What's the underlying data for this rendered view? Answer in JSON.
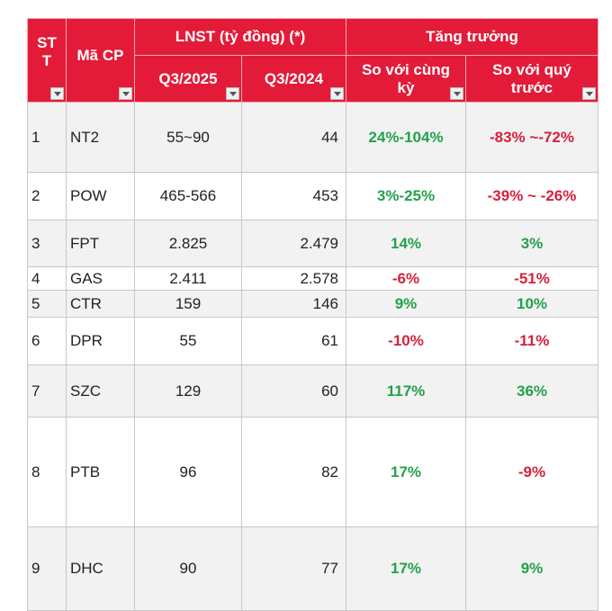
{
  "header": {
    "stt": "ST T",
    "ma_cp": "Mã CP",
    "lnst": "LNST (tỷ đồng) (*)",
    "tang_truong": "Tăng trưởng",
    "q3_2025": "Q3/2025",
    "q3_2024": "Q3/2024",
    "yoy": "So với cùng kỳ",
    "qoq": "So với quý trước"
  },
  "rows": [
    {
      "stt": "1",
      "ma": "NT2",
      "q25": "55~90",
      "q24": "44",
      "yoy": "24%-104%",
      "yoy_sign": "pos",
      "qoq": "-83% ~-72%",
      "qoq_sign": "neg"
    },
    {
      "stt": "2",
      "ma": "POW",
      "q25": "465-566",
      "q24": "453",
      "yoy": "3%-25%",
      "yoy_sign": "pos",
      "qoq": "-39% ~ -26%",
      "qoq_sign": "neg"
    },
    {
      "stt": "3",
      "ma": "FPT",
      "q25": "2.825",
      "q24": "2.479",
      "yoy": "14%",
      "yoy_sign": "pos",
      "qoq": "3%",
      "qoq_sign": "pos"
    },
    {
      "stt": "4",
      "ma": "GAS",
      "q25": "2.411",
      "q24": "2.578",
      "yoy": "-6%",
      "yoy_sign": "neg",
      "qoq": "-51%",
      "qoq_sign": "neg"
    },
    {
      "stt": "5",
      "ma": "CTR",
      "q25": "159",
      "q24": "146",
      "yoy": "9%",
      "yoy_sign": "pos",
      "qoq": "10%",
      "qoq_sign": "pos"
    },
    {
      "stt": "6",
      "ma": "DPR",
      "q25": "55",
      "q24": "61",
      "yoy": "-10%",
      "yoy_sign": "neg",
      "qoq": "-11%",
      "qoq_sign": "neg"
    },
    {
      "stt": "7",
      "ma": "SZC",
      "q25": "129",
      "q24": "60",
      "yoy": "117%",
      "yoy_sign": "pos",
      "qoq": "36%",
      "qoq_sign": "pos"
    },
    {
      "stt": "8",
      "ma": "PTB",
      "q25": "96",
      "q24": "82",
      "yoy": "17%",
      "yoy_sign": "pos",
      "qoq": "-9%",
      "qoq_sign": "neg"
    },
    {
      "stt": "9",
      "ma": "DHC",
      "q25": "90",
      "q24": "77",
      "yoy": "17%",
      "yoy_sign": "pos",
      "qoq": "9%",
      "qoq_sign": "pos"
    }
  ],
  "colors": {
    "header_bg": "#e31b38",
    "positive": "#22a24a",
    "negative": "#d4213c"
  }
}
